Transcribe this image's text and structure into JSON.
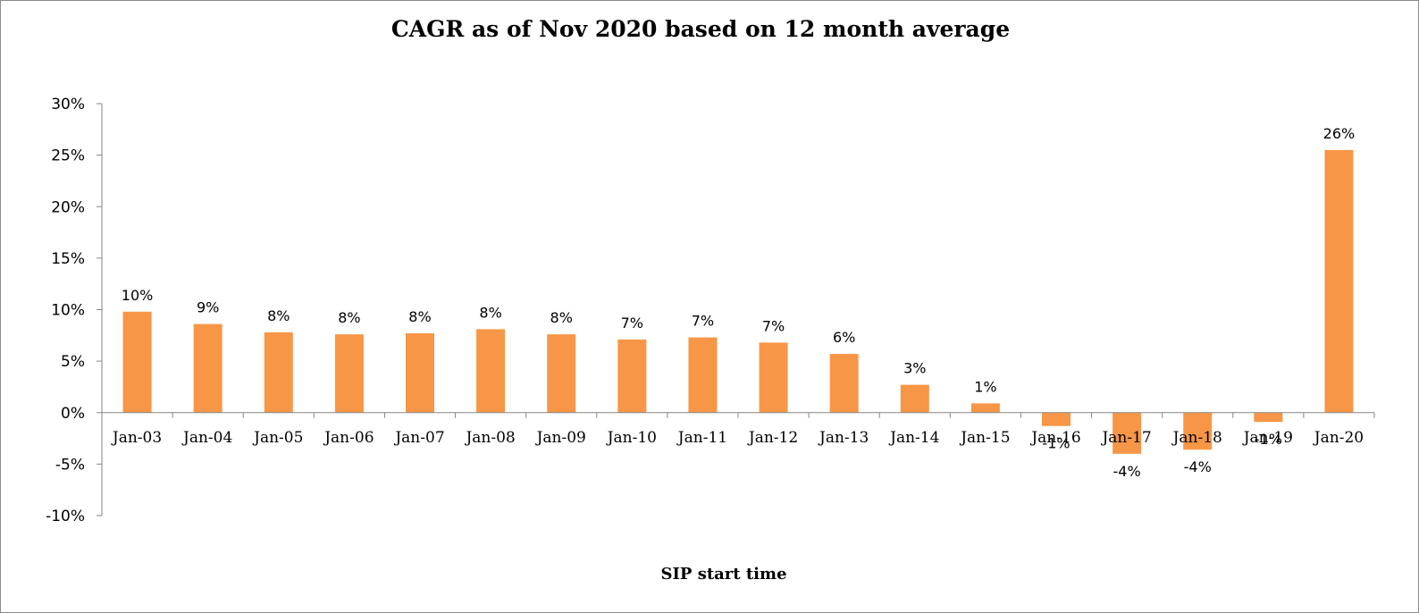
{
  "chart_data": {
    "type": "bar",
    "title": "CAGR as of Nov 2020 based on 12 month average",
    "xlabel": "SIP start time",
    "ylabel": "",
    "categories": [
      "Jan-03",
      "Jan-04",
      "Jan-05",
      "Jan-06",
      "Jan-07",
      "Jan-08",
      "Jan-09",
      "Jan-10",
      "Jan-11",
      "Jan-12",
      "Jan-13",
      "Jan-14",
      "Jan-15",
      "Jan-16",
      "Jan-17",
      "Jan-18",
      "Jan-19",
      "Jan-20"
    ],
    "values": [
      9.8,
      8.6,
      7.8,
      7.6,
      7.7,
      8.1,
      7.6,
      7.1,
      7.3,
      6.8,
      5.7,
      2.7,
      0.9,
      -1.3,
      -4.0,
      -3.6,
      -0.9,
      25.5
    ],
    "data_labels": [
      "10%",
      "9%",
      "8%",
      "8%",
      "8%",
      "8%",
      "8%",
      "7%",
      "7%",
      "7%",
      "6%",
      "3%",
      "1%",
      "-1%",
      "-4%",
      "-4%",
      "-1%",
      "26%"
    ],
    "ylim": [
      -10,
      30
    ],
    "yticks": [
      -10,
      -5,
      0,
      5,
      10,
      15,
      20,
      25,
      30
    ],
    "ytick_labels": [
      "-10%",
      "-5%",
      "0%",
      "5%",
      "10%",
      "15%",
      "20%",
      "25%",
      "30%"
    ],
    "grid": false,
    "legend": "none",
    "bar_color": "#f79646"
  }
}
